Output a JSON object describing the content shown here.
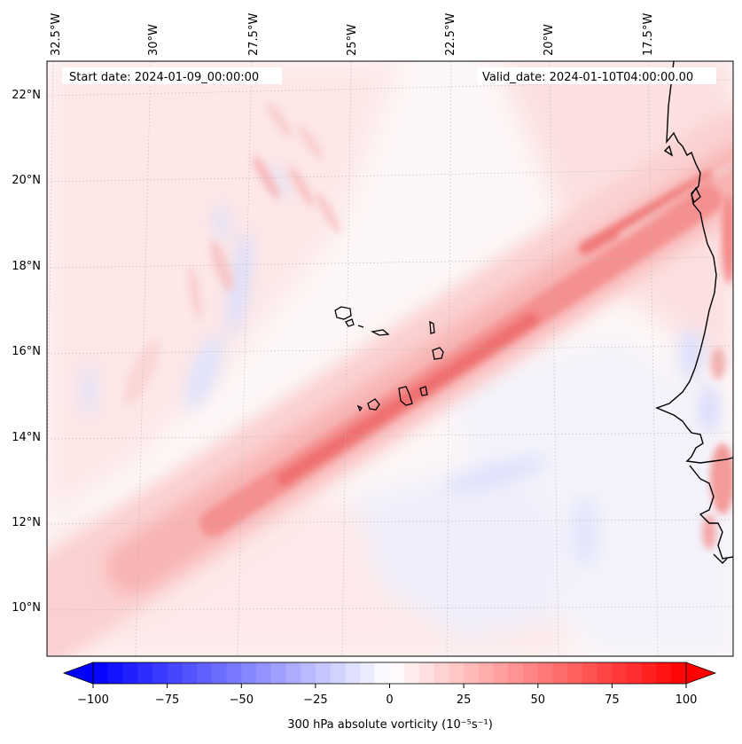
{
  "map": {
    "start_date_label": "Start date: 2024-01-09_00:00:00",
    "valid_date_label": "Valid_date: 2024-01-10T04:00:00.00",
    "lon_labels": [
      "32.5°W",
      "30°W",
      "27.5°W",
      "25°W",
      "22.5°W",
      "20°W",
      "17.5°W"
    ],
    "lat_labels": [
      "22°N",
      "20°N",
      "18°N",
      "16°N",
      "14°N",
      "12°N",
      "10°N"
    ],
    "field": "300 hPa absolute vorticity",
    "colors": {
      "positive_max": "#ff0000",
      "negative_max": "#0000ff",
      "neutral": "#ffffff",
      "coastline": "#000000",
      "gridline": "#b0b0b0"
    }
  },
  "colorbar": {
    "label": "300 hPa absolute vorticity (10⁻⁵s⁻¹)",
    "ticks": [
      "−100",
      "−75",
      "−50",
      "−25",
      "0",
      "25",
      "50",
      "75",
      "100"
    ],
    "vmin": -100,
    "vmax": 100,
    "extend": "both"
  }
}
